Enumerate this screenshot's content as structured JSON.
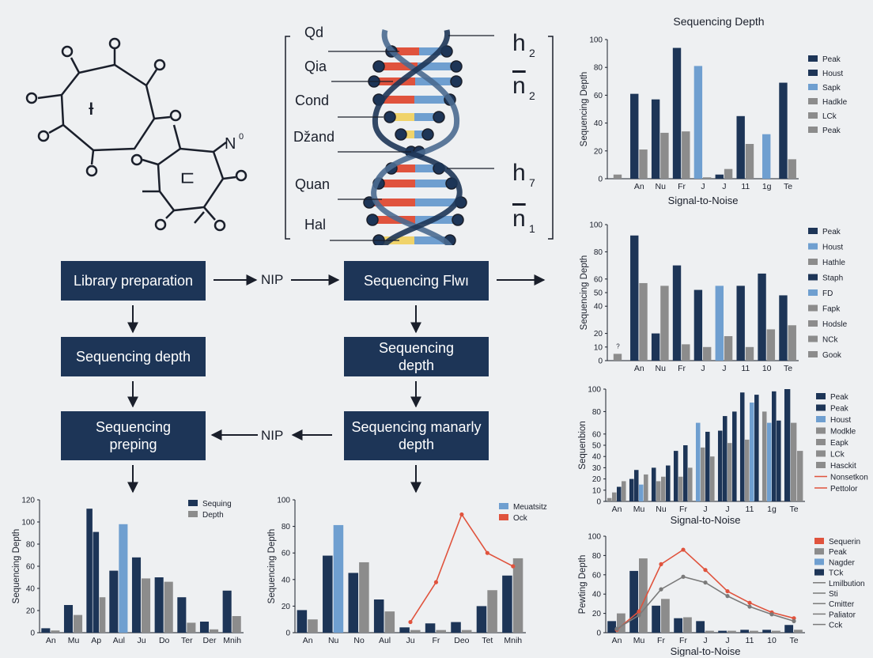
{
  "colors": {
    "navy": "#1d3557",
    "blue": "#6f9fd0",
    "gray": "#8c8c8c",
    "red": "#e0533d",
    "yellow": "#f0d36a",
    "line_gray": "#7a7a7a"
  },
  "molecule": {
    "label_n": "N",
    "label_n_sup": "0",
    "ring_glyph_1": "ᵼ",
    "ring_glyph_2": "ㄷ"
  },
  "dna": {
    "left_labels": [
      "Qd",
      "Qia",
      "Cond",
      "ǅand",
      "Quan",
      "Hal"
    ],
    "right_labels": [
      "h",
      "n",
      "h",
      "n"
    ],
    "right_subs": [
      "2",
      "2",
      "7",
      "1"
    ]
  },
  "flow": {
    "library_preparation": "Library preparation",
    "sequencing_flow": "Sequencing Flwı",
    "sequencing_depth_left": "Sequencing depth",
    "sequencing_depth_mid": "Sequencing depth",
    "sequencing_preping": "Sequencing preping",
    "sequencing_manarly": "Sequencing manarly depth",
    "arrow_label_top": "NIP",
    "arrow_label_mid": "NIP"
  },
  "chart_data": [
    {
      "id": "right1",
      "type": "bar",
      "title": "Sequencing Depth",
      "xlabel": "Signal-to-Noise",
      "ylabel": "Sequencing Depth",
      "ylim": [
        0,
        100
      ],
      "yticks": [
        0,
        20,
        40,
        60,
        80,
        100
      ],
      "categories": [
        "",
        "An",
        "Nu",
        "Fr",
        "J",
        "J",
        "11",
        "1g",
        "Te"
      ],
      "legend": [
        "Peak",
        "Houst",
        "Sapk",
        "Hadkle",
        "LCk",
        "Peak"
      ],
      "legend_colors": [
        "#1d3557",
        "#1d3557",
        "#6f9fd0",
        "#8c8c8c",
        "#8c8c8c",
        "#8c8c8c"
      ],
      "bars": [
        {
          "cat": 0,
          "v": 3,
          "c": "gray"
        },
        {
          "cat": 1,
          "v": 61,
          "c": "navy"
        },
        {
          "cat": 1,
          "v": 21,
          "c": "gray"
        },
        {
          "cat": 2,
          "v": 57,
          "c": "navy"
        },
        {
          "cat": 2,
          "v": 33,
          "c": "gray"
        },
        {
          "cat": 3,
          "v": 94,
          "c": "navy"
        },
        {
          "cat": 3,
          "v": 34,
          "c": "gray"
        },
        {
          "cat": 4,
          "v": 81,
          "c": "blue"
        },
        {
          "cat": 4,
          "v": 1,
          "c": "gray"
        },
        {
          "cat": 5,
          "v": 3,
          "c": "navy"
        },
        {
          "cat": 5,
          "v": 7,
          "c": "gray"
        },
        {
          "cat": 6,
          "v": 45,
          "c": "navy"
        },
        {
          "cat": 6,
          "v": 25,
          "c": "gray"
        },
        {
          "cat": 7,
          "v": 32,
          "c": "blue"
        },
        {
          "cat": 8,
          "v": 69,
          "c": "navy"
        },
        {
          "cat": 8,
          "v": 14,
          "c": "gray"
        }
      ]
    },
    {
      "id": "right2",
      "type": "bar",
      "title": "",
      "xlabel": "",
      "ylabel": "Sequencing Depth",
      "ylim": [
        0,
        100
      ],
      "yticks": [
        0,
        10,
        20,
        40,
        50,
        60,
        80,
        100
      ],
      "categories": [
        "",
        "An",
        "Nu",
        "Fr",
        "J",
        "J",
        "11",
        "10",
        "Te"
      ],
      "legend": [
        "Peak",
        "Houst",
        "Hathle",
        "Staph",
        "FD",
        "Fapk",
        "Hodsle",
        "NCk",
        "Gook"
      ],
      "legend_colors": [
        "#1d3557",
        "#6f9fd0",
        "#8c8c8c",
        "#1d3557",
        "#6f9fd0",
        "#8c8c8c",
        "#8c8c8c",
        "#8c8c8c",
        "#8c8c8c"
      ],
      "bars": [
        {
          "cat": 0,
          "v": 5,
          "c": "gray"
        },
        {
          "cat": 1,
          "v": 92,
          "c": "navy"
        },
        {
          "cat": 1,
          "v": 57,
          "c": "gray"
        },
        {
          "cat": 2,
          "v": 20,
          "c": "navy"
        },
        {
          "cat": 2,
          "v": 55,
          "c": "gray"
        },
        {
          "cat": 3,
          "v": 70,
          "c": "navy"
        },
        {
          "cat": 3,
          "v": 12,
          "c": "gray"
        },
        {
          "cat": 4,
          "v": 52,
          "c": "navy"
        },
        {
          "cat": 4,
          "v": 10,
          "c": "gray"
        },
        {
          "cat": 5,
          "v": 55,
          "c": "blue"
        },
        {
          "cat": 5,
          "v": 18,
          "c": "gray"
        },
        {
          "cat": 6,
          "v": 55,
          "c": "navy"
        },
        {
          "cat": 6,
          "v": 10,
          "c": "gray"
        },
        {
          "cat": 7,
          "v": 64,
          "c": "navy"
        },
        {
          "cat": 7,
          "v": 23,
          "c": "gray"
        },
        {
          "cat": 8,
          "v": 48,
          "c": "navy"
        },
        {
          "cat": 8,
          "v": 26,
          "c": "gray"
        }
      ],
      "annotations": [
        {
          "cat": 0,
          "v": 9,
          "text": "?"
        }
      ]
    },
    {
      "id": "right3",
      "type": "bar",
      "title": "",
      "xlabel": "Signal-to-Noise",
      "ylabel": "Sequenbion",
      "ylim": [
        0,
        100
      ],
      "yticks": [
        0,
        10,
        20,
        30,
        40,
        50,
        60,
        80,
        100
      ],
      "categories": [
        "An",
        "Mu",
        "Nu",
        "Fr",
        "J",
        "J",
        "11",
        "1g",
        "Te"
      ],
      "legend": [
        "Peak",
        "Peak",
        "Houst",
        "Modkle",
        "Eapk",
        "LCk",
        "Hasckit",
        "Nonsetkon",
        "Pettolor"
      ],
      "legend_colors": [
        "#1d3557",
        "#1d3557",
        "#6f9fd0",
        "#8c8c8c",
        "#8c8c8c",
        "#8c8c8c",
        "#8c8c8c",
        "#e0533d",
        "#e0533d"
      ],
      "bars": [
        {
          "cat": 0,
          "v": 3,
          "c": "gray"
        },
        {
          "cat": 0,
          "v": 8,
          "c": "gray"
        },
        {
          "cat": 0,
          "v": 13,
          "c": "navy"
        },
        {
          "cat": 0,
          "v": 18,
          "c": "gray"
        },
        {
          "cat": 1,
          "v": 20,
          "c": "navy"
        },
        {
          "cat": 1,
          "v": 28,
          "c": "navy"
        },
        {
          "cat": 1,
          "v": 15,
          "c": "blue"
        },
        {
          "cat": 1,
          "v": 24,
          "c": "gray"
        },
        {
          "cat": 2,
          "v": 30,
          "c": "navy"
        },
        {
          "cat": 2,
          "v": 18,
          "c": "gray"
        },
        {
          "cat": 2,
          "v": 22,
          "c": "gray"
        },
        {
          "cat": 2,
          "v": 32,
          "c": "navy"
        },
        {
          "cat": 3,
          "v": 45,
          "c": "navy"
        },
        {
          "cat": 3,
          "v": 22,
          "c": "gray"
        },
        {
          "cat": 3,
          "v": 50,
          "c": "navy"
        },
        {
          "cat": 3,
          "v": 30,
          "c": "gray"
        },
        {
          "cat": 4,
          "v": 70,
          "c": "blue"
        },
        {
          "cat": 4,
          "v": 48,
          "c": "gray"
        },
        {
          "cat": 4,
          "v": 62,
          "c": "navy"
        },
        {
          "cat": 4,
          "v": 40,
          "c": "gray"
        },
        {
          "cat": 5,
          "v": 63,
          "c": "navy"
        },
        {
          "cat": 5,
          "v": 76,
          "c": "navy"
        },
        {
          "cat": 5,
          "v": 52,
          "c": "gray"
        },
        {
          "cat": 5,
          "v": 80,
          "c": "navy"
        },
        {
          "cat": 6,
          "v": 97,
          "c": "navy"
        },
        {
          "cat": 6,
          "v": 55,
          "c": "gray"
        },
        {
          "cat": 6,
          "v": 88,
          "c": "blue"
        },
        {
          "cat": 6,
          "v": 95,
          "c": "navy"
        },
        {
          "cat": 7,
          "v": 80,
          "c": "gray"
        },
        {
          "cat": 7,
          "v": 70,
          "c": "blue"
        },
        {
          "cat": 7,
          "v": 98,
          "c": "navy"
        },
        {
          "cat": 7,
          "v": 72,
          "c": "navy"
        },
        {
          "cat": 8,
          "v": 100,
          "c": "navy"
        },
        {
          "cat": 8,
          "v": 70,
          "c": "gray"
        },
        {
          "cat": 8,
          "v": 45,
          "c": "gray"
        }
      ]
    },
    {
      "id": "right4",
      "type": "bar",
      "title": "",
      "xlabel": "Signal-to-Noise",
      "ylabel": "Pewting Depth",
      "ylim": [
        0,
        100
      ],
      "yticks": [
        0,
        20,
        40,
        60,
        80,
        100
      ],
      "categories": [
        "An",
        "Mu",
        "Fr",
        "Fr",
        "J",
        "J",
        "11",
        "10",
        "Te"
      ],
      "legend": [
        "Sequerin",
        "Peak",
        "Nagder",
        "TCk",
        "Lmilbution",
        "Sti",
        "Cmitter",
        "Paliator",
        "Cck"
      ],
      "legend_colors": [
        "#e0533d",
        "#8c8c8c",
        "#6f9fd0",
        "#1d3557",
        "#7a7a7a",
        "#7a7a7a",
        "#7a7a7a",
        "#7a7a7a",
        "#7a7a7a"
      ],
      "bars": [
        {
          "cat": 0,
          "v": 12,
          "c": "navy"
        },
        {
          "cat": 0,
          "v": 20,
          "c": "gray"
        },
        {
          "cat": 1,
          "v": 64,
          "c": "navy"
        },
        {
          "cat": 1,
          "v": 77,
          "c": "gray"
        },
        {
          "cat": 2,
          "v": 28,
          "c": "navy"
        },
        {
          "cat": 2,
          "v": 35,
          "c": "gray"
        },
        {
          "cat": 3,
          "v": 15,
          "c": "navy"
        },
        {
          "cat": 3,
          "v": 16,
          "c": "gray"
        },
        {
          "cat": 4,
          "v": 12,
          "c": "navy"
        },
        {
          "cat": 4,
          "v": 2,
          "c": "gray"
        },
        {
          "cat": 5,
          "v": 2,
          "c": "navy"
        },
        {
          "cat": 5,
          "v": 2,
          "c": "gray"
        },
        {
          "cat": 6,
          "v": 3,
          "c": "navy"
        },
        {
          "cat": 6,
          "v": 2,
          "c": "gray"
        },
        {
          "cat": 7,
          "v": 3,
          "c": "navy"
        },
        {
          "cat": 7,
          "v": 2,
          "c": "gray"
        },
        {
          "cat": 8,
          "v": 8,
          "c": "navy"
        },
        {
          "cat": 8,
          "v": 3,
          "c": "gray"
        }
      ],
      "lines": [
        {
          "color": "red",
          "values": [
            3,
            22,
            71,
            86,
            65,
            43,
            31,
            21,
            15
          ]
        },
        {
          "color": "line_gray",
          "values": [
            4,
            18,
            45,
            58,
            52,
            38,
            27,
            19,
            12
          ]
        }
      ]
    },
    {
      "id": "bottom1",
      "type": "bar",
      "title": "",
      "xlabel": "",
      "ylabel": "Sequencing Depth",
      "ylim": [
        0,
        120
      ],
      "yticks": [
        0,
        20,
        40,
        60,
        80,
        100,
        120
      ],
      "categories": [
        "An",
        "Mu",
        "Ap",
        "Aul",
        "Ju",
        "Do",
        "Ter",
        "Der",
        "Mnih"
      ],
      "legend": [
        "Sequing",
        "Depth"
      ],
      "legend_colors": [
        "#1d3557",
        "#8c8c8c"
      ],
      "bars": [
        {
          "cat": 0,
          "v": 4,
          "c": "navy"
        },
        {
          "cat": 0,
          "v": 2,
          "c": "gray"
        },
        {
          "cat": 1,
          "v": 25,
          "c": "navy"
        },
        {
          "cat": 1,
          "v": 16,
          "c": "gray"
        },
        {
          "cat": 2,
          "v": 112,
          "c": "navy"
        },
        {
          "cat": 2,
          "v": 91,
          "c": "navy"
        },
        {
          "cat": 2,
          "v": 32,
          "c": "gray"
        },
        {
          "cat": 3,
          "v": 56,
          "c": "navy"
        },
        {
          "cat": 3,
          "v": 98,
          "c": "blue"
        },
        {
          "cat": 4,
          "v": 68,
          "c": "navy"
        },
        {
          "cat": 4,
          "v": 49,
          "c": "gray"
        },
        {
          "cat": 5,
          "v": 50,
          "c": "navy"
        },
        {
          "cat": 5,
          "v": 46,
          "c": "gray"
        },
        {
          "cat": 6,
          "v": 32,
          "c": "navy"
        },
        {
          "cat": 6,
          "v": 9,
          "c": "gray"
        },
        {
          "cat": 7,
          "v": 10,
          "c": "navy"
        },
        {
          "cat": 7,
          "v": 3,
          "c": "gray"
        },
        {
          "cat": 8,
          "v": 38,
          "c": "navy"
        },
        {
          "cat": 8,
          "v": 15,
          "c": "gray"
        }
      ]
    },
    {
      "id": "bottom2",
      "type": "bar",
      "title": "",
      "xlabel": "",
      "ylabel": "Sequencing Depth",
      "ylim": [
        0,
        100
      ],
      "yticks": [
        0,
        20,
        40,
        60,
        80,
        100
      ],
      "categories": [
        "An",
        "Nu",
        "No",
        "Aul",
        "Ju",
        "Fr",
        "Deo",
        "Tet",
        "Mnih"
      ],
      "legend": [
        "Meuatsitz",
        "Ock"
      ],
      "legend_colors": [
        "#6f9fd0",
        "#e0533d"
      ],
      "bars": [
        {
          "cat": 0,
          "v": 17,
          "c": "navy"
        },
        {
          "cat": 0,
          "v": 10,
          "c": "gray"
        },
        {
          "cat": 1,
          "v": 58,
          "c": "navy"
        },
        {
          "cat": 1,
          "v": 81,
          "c": "blue"
        },
        {
          "cat": 2,
          "v": 45,
          "c": "navy"
        },
        {
          "cat": 2,
          "v": 53,
          "c": "gray"
        },
        {
          "cat": 3,
          "v": 25,
          "c": "navy"
        },
        {
          "cat": 3,
          "v": 16,
          "c": "gray"
        },
        {
          "cat": 4,
          "v": 4,
          "c": "navy"
        },
        {
          "cat": 4,
          "v": 2,
          "c": "gray"
        },
        {
          "cat": 5,
          "v": 7,
          "c": "navy"
        },
        {
          "cat": 5,
          "v": 2,
          "c": "gray"
        },
        {
          "cat": 6,
          "v": 8,
          "c": "navy"
        },
        {
          "cat": 6,
          "v": 2,
          "c": "gray"
        },
        {
          "cat": 7,
          "v": 20,
          "c": "navy"
        },
        {
          "cat": 7,
          "v": 32,
          "c": "gray"
        },
        {
          "cat": 8,
          "v": 43,
          "c": "navy"
        },
        {
          "cat": 8,
          "v": 56,
          "c": "gray"
        }
      ],
      "lines": [
        {
          "color": "red",
          "start_cat": 4,
          "values": [
            8,
            38,
            89,
            60,
            50
          ]
        }
      ]
    }
  ]
}
